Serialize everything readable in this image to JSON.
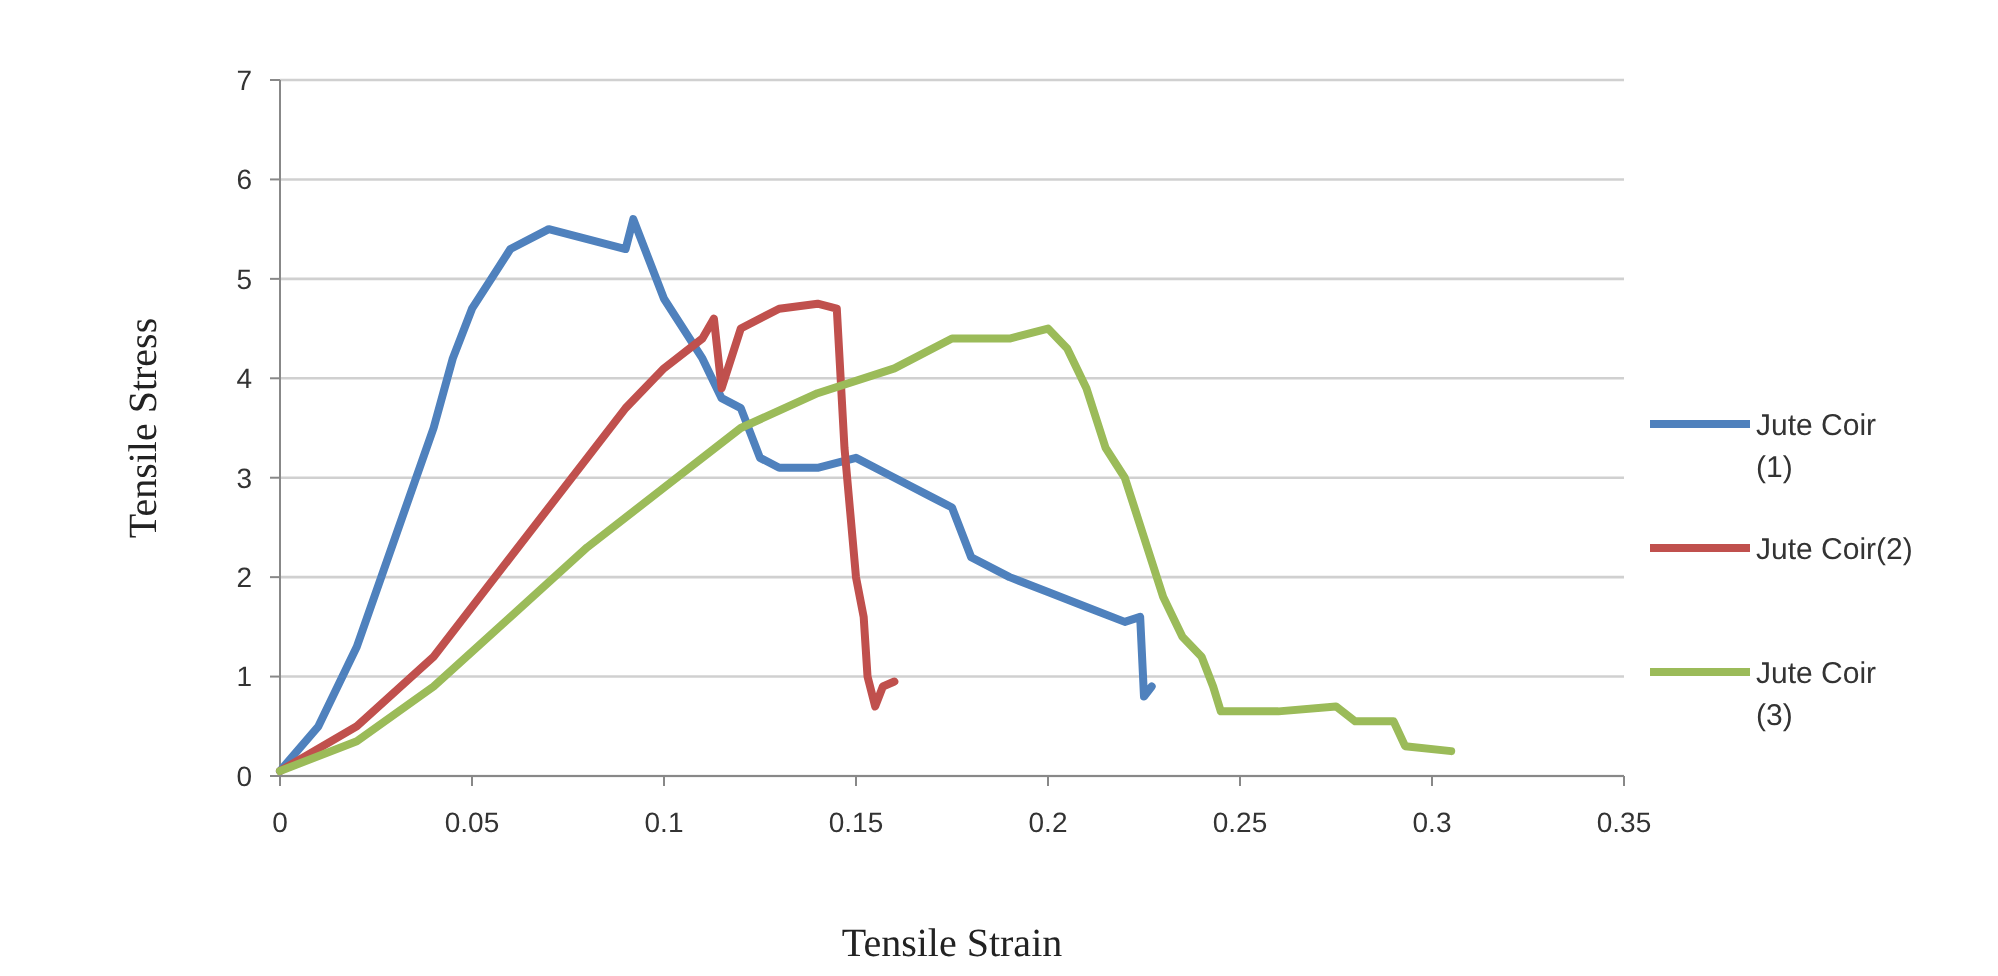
{
  "chart_data": {
    "type": "line",
    "xlabel": "Tensile Strain",
    "ylabel": "Tensile Stress",
    "xlim": [
      0,
      0.35
    ],
    "ylim": [
      0,
      7
    ],
    "xticks": [
      0,
      0.05,
      0.1,
      0.15,
      0.2,
      0.25,
      0.3,
      0.35
    ],
    "yticks": [
      0,
      1,
      2,
      3,
      4,
      5,
      6,
      7
    ],
    "grid": "y",
    "legend": "right",
    "marker": "none",
    "line_style": "solid",
    "series": [
      {
        "name": "Jute Coir (1)",
        "color": "#4f81bd",
        "x": [
          0,
          0.01,
          0.02,
          0.03,
          0.04,
          0.045,
          0.05,
          0.055,
          0.06,
          0.07,
          0.08,
          0.09,
          0.092,
          0.1,
          0.11,
          0.115,
          0.12,
          0.125,
          0.13,
          0.14,
          0.15,
          0.16,
          0.17,
          0.175,
          0.18,
          0.19,
          0.2,
          0.21,
          0.22,
          0.224,
          0.225,
          0.227
        ],
        "values": [
          0.05,
          0.5,
          1.3,
          2.4,
          3.5,
          4.2,
          4.7,
          5.0,
          5.3,
          5.5,
          5.4,
          5.3,
          5.6,
          4.8,
          4.2,
          3.8,
          3.7,
          3.2,
          3.1,
          3.1,
          3.2,
          3.0,
          2.8,
          2.7,
          2.2,
          2.0,
          1.85,
          1.7,
          1.55,
          1.6,
          0.8,
          0.9
        ]
      },
      {
        "name": "Jute Coir(2)",
        "color": "#c0504d",
        "x": [
          0,
          0.02,
          0.04,
          0.06,
          0.08,
          0.09,
          0.1,
          0.11,
          0.113,
          0.115,
          0.12,
          0.13,
          0.14,
          0.145,
          0.147,
          0.15,
          0.152,
          0.153,
          0.155,
          0.157,
          0.16
        ],
        "values": [
          0.05,
          0.5,
          1.2,
          2.2,
          3.2,
          3.7,
          4.1,
          4.4,
          4.6,
          3.9,
          4.5,
          4.7,
          4.75,
          4.7,
          3.3,
          2.0,
          1.6,
          1.0,
          0.7,
          0.9,
          0.95
        ]
      },
      {
        "name": "Jute Coir (3)",
        "color": "#9bbb59",
        "x": [
          0,
          0.02,
          0.04,
          0.06,
          0.08,
          0.1,
          0.12,
          0.14,
          0.16,
          0.175,
          0.19,
          0.2,
          0.205,
          0.21,
          0.215,
          0.22,
          0.225,
          0.23,
          0.235,
          0.24,
          0.243,
          0.245,
          0.26,
          0.275,
          0.28,
          0.29,
          0.293,
          0.305
        ],
        "values": [
          0.05,
          0.35,
          0.9,
          1.6,
          2.3,
          2.9,
          3.5,
          3.85,
          4.1,
          4.4,
          4.4,
          4.5,
          4.3,
          3.9,
          3.3,
          3.0,
          2.4,
          1.8,
          1.4,
          1.2,
          0.9,
          0.65,
          0.65,
          0.7,
          0.55,
          0.55,
          0.3,
          0.25
        ]
      }
    ]
  }
}
